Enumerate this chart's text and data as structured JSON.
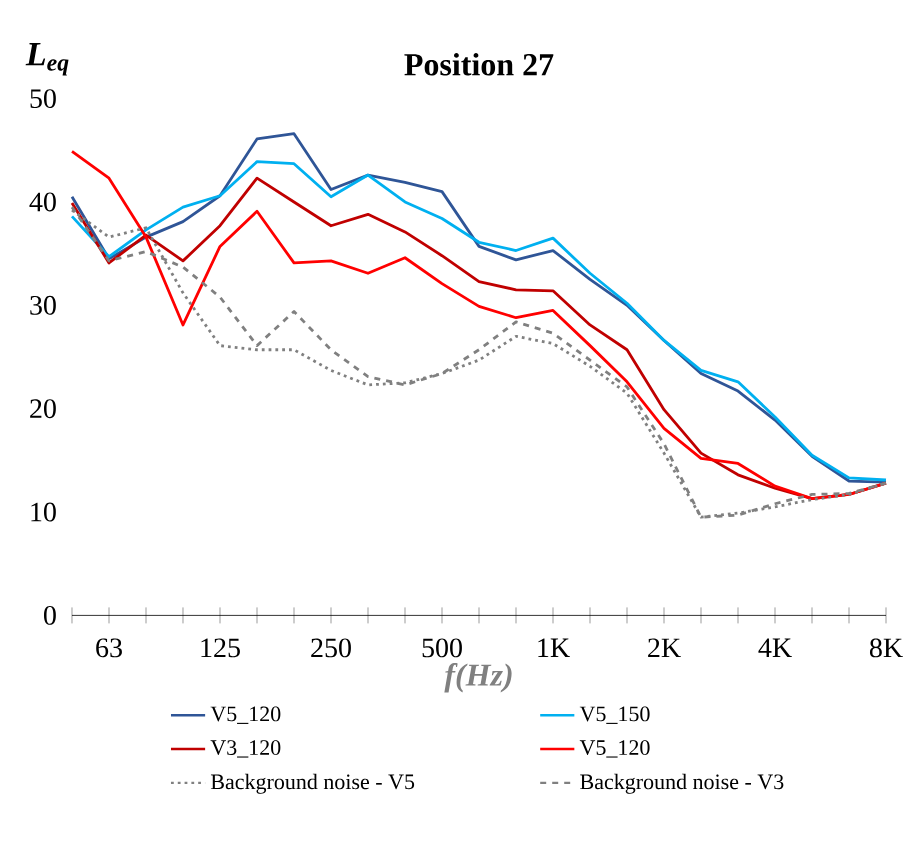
{
  "chart_data": {
    "type": "line",
    "title": "Position 27",
    "xlabel": "f(Hz)",
    "ylabel": "L$_{eq}$",
    "categories": [
      null,
      "63",
      null,
      null,
      "125",
      null,
      null,
      "250",
      null,
      null,
      "500",
      null,
      null,
      "1K",
      null,
      null,
      "2K",
      null,
      null,
      "4K",
      null,
      null,
      "8K"
    ],
    "ylim": [
      0,
      50
    ],
    "yticks": [
      0,
      10,
      20,
      30,
      40,
      50
    ],
    "legend": "bottom",
    "marker": "none",
    "series": [
      {
        "name": "V5_120",
        "color": "#2f5597",
        "line_style": "solid",
        "values": [
          40.5,
          34.5,
          36.6,
          38.1,
          40.6,
          46.1,
          46.6,
          41.2,
          42.6,
          41.9,
          41.0,
          35.7,
          34.4,
          35.3,
          32.5,
          30.0,
          26.6,
          23.4,
          21.7,
          18.9,
          15.4,
          13.0,
          12.9
        ]
      },
      {
        "name": "V5_150",
        "color": "#00b0f0",
        "line_style": "solid",
        "values": [
          38.6,
          34.7,
          37.3,
          39.5,
          40.6,
          43.9,
          43.7,
          40.5,
          42.6,
          40.0,
          38.4,
          36.1,
          35.3,
          36.5,
          33.1,
          30.2,
          26.6,
          23.7,
          22.6,
          19.2,
          15.5,
          13.3,
          13.1
        ]
      },
      {
        "name": "V3_120",
        "color": "#c00000",
        "line_style": "solid",
        "values": [
          39.9,
          34.1,
          36.8,
          34.3,
          37.7,
          42.3,
          40.0,
          37.7,
          38.8,
          37.1,
          34.8,
          32.3,
          31.5,
          31.4,
          28.1,
          25.7,
          19.9,
          15.7,
          13.6,
          12.3,
          11.3,
          11.7,
          12.8
        ]
      },
      {
        "name": "V5_120",
        "color": "#ff0000",
        "line_style": "solid",
        "values": [
          44.9,
          42.3,
          36.6,
          28.1,
          35.7,
          39.1,
          34.1,
          34.3,
          33.1,
          34.6,
          32.1,
          29.9,
          28.8,
          29.5,
          26.1,
          22.6,
          18.1,
          15.2,
          14.7,
          12.5,
          11.3,
          11.7,
          12.8
        ]
      },
      {
        "name": "Background noise - V5",
        "color": "#808080",
        "line_style": "dotted",
        "values": [
          39.2,
          36.6,
          37.5,
          31.2,
          26.1,
          25.7,
          25.7,
          23.7,
          22.3,
          22.5,
          23.4,
          24.7,
          27.0,
          26.3,
          24.1,
          21.5,
          15.7,
          9.5,
          9.9,
          10.5,
          11.2,
          11.7,
          12.8
        ]
      },
      {
        "name": "Background noise - V3",
        "color": "#808080",
        "line_style": "dashed",
        "values": [
          39.5,
          34.3,
          35.2,
          33.7,
          30.8,
          26.1,
          29.4,
          25.7,
          23.1,
          22.3,
          23.4,
          25.7,
          28.4,
          27.3,
          24.7,
          22.1,
          16.6,
          9.5,
          9.7,
          10.8,
          11.7,
          11.8,
          12.8
        ]
      }
    ]
  }
}
